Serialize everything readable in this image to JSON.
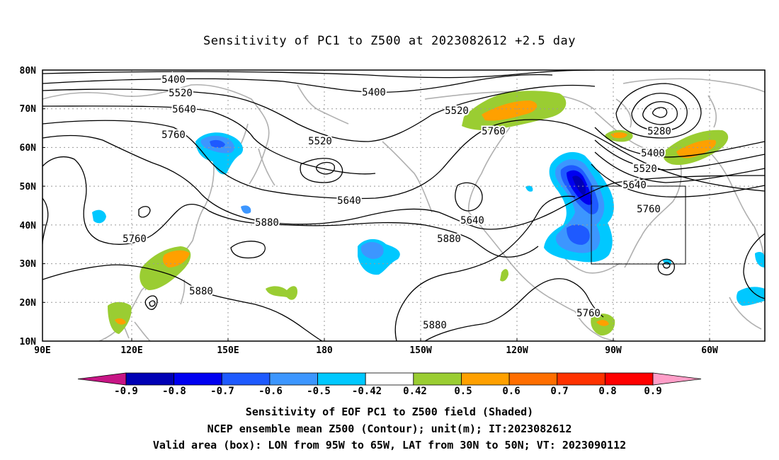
{
  "title": "Sensitivity of PC1 to Z500 at 2023082612 +2.5 day",
  "lat_labels": [
    "80N",
    "70N",
    "60N",
    "50N",
    "40N",
    "30N",
    "20N",
    "10N"
  ],
  "lon_labels": [
    "90E",
    "120E",
    "150E",
    "180",
    "150W",
    "120W",
    "90W",
    "60W"
  ],
  "contour_labels": [
    "5400",
    "5520",
    "5640",
    "5760",
    "5400",
    "5520",
    "5520",
    "5640",
    "5760",
    "5760",
    "5880",
    "5880",
    "5880",
    "5880",
    "5640",
    "5760",
    "5280",
    "5400",
    "5520",
    "5640",
    "5760"
  ],
  "colorbar": {
    "labels": [
      "-0.9",
      "-0.8",
      "-0.7",
      "-0.6",
      "-0.5",
      "-0.42",
      "0.42",
      "0.5",
      "0.6",
      "0.7",
      "0.8",
      "0.9"
    ],
    "colors": [
      "#c71585",
      "#0000b4",
      "#0000f0",
      "#1e5aff",
      "#3c96ff",
      "#00c8ff",
      "#ffffff",
      "#9acd32",
      "#ffa000",
      "#ff6e00",
      "#ff3200",
      "#ff0000",
      "#ff9ec8"
    ]
  },
  "captions": [
    "Sensitivity of EOF PC1 to Z500 field (Shaded)",
    "NCEP ensemble mean Z500 (Contour); unit(m); IT:2023082612",
    "Valid area (box): LON from 95W to 65W, LAT from 30N to 50N; VT: 2023090112"
  ]
}
